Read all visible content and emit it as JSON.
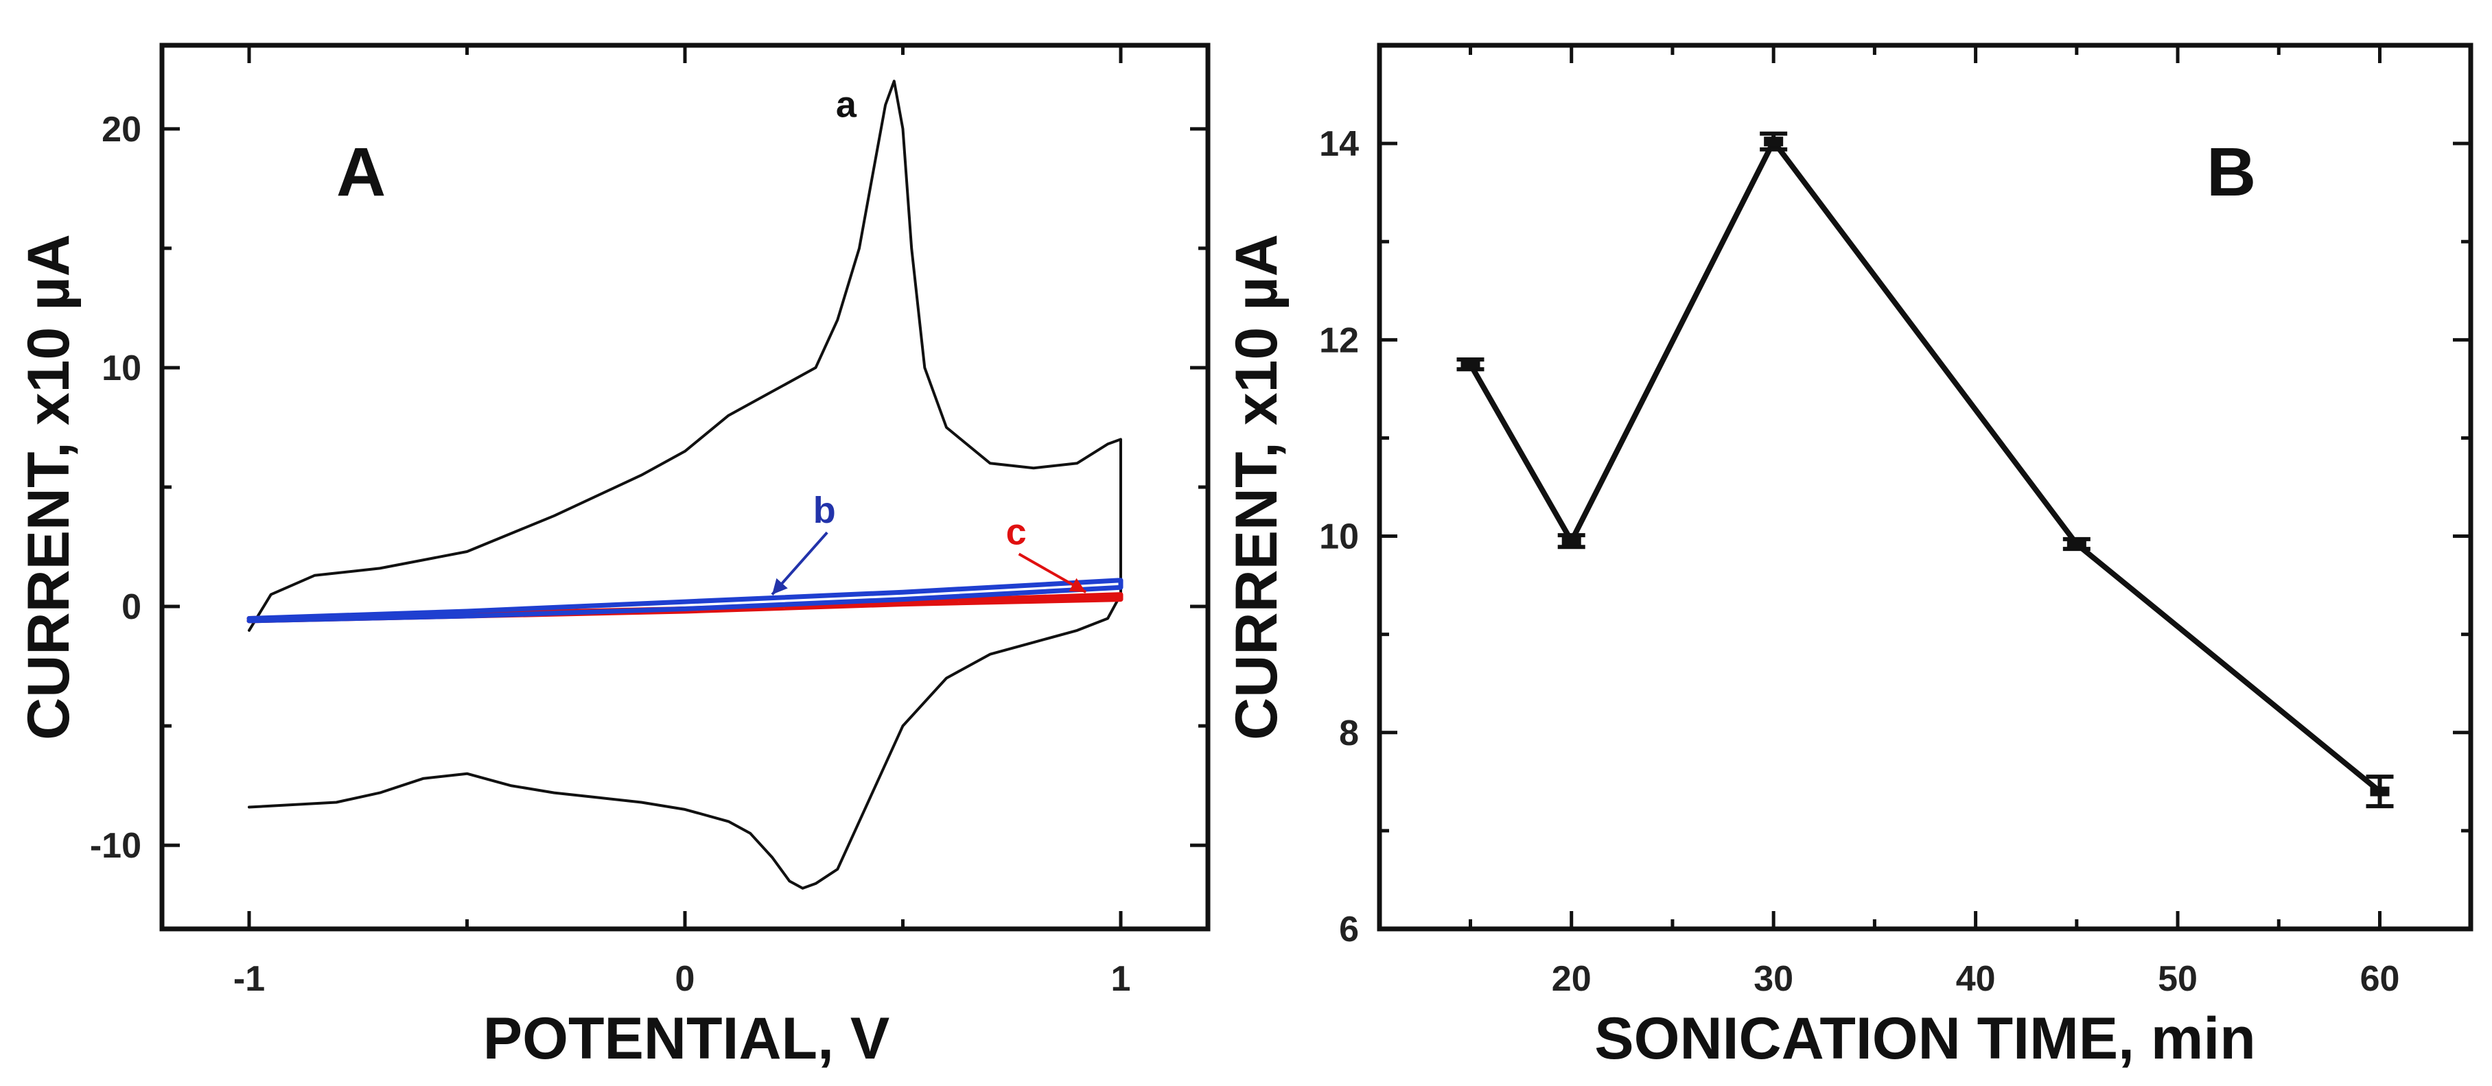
{
  "chart_data": [
    {
      "panel": "A",
      "type": "line",
      "xlabel": "POTENTIAL, V",
      "ylabel": "CURRENT, x10 µA",
      "xlim": [
        -1.2,
        1.2
      ],
      "ylim": [
        -13.5,
        23.5
      ],
      "xticks": [
        -1,
        0,
        1
      ],
      "xtick_labels": [
        "-1",
        "0",
        "1"
      ],
      "yticks": [
        -10,
        0,
        10,
        20
      ],
      "ytick_labels": [
        "-10",
        "0",
        "10",
        "20"
      ],
      "series": [
        {
          "name": "a",
          "color": "#111111",
          "x": [
            -1.0,
            -0.95,
            -0.85,
            -0.7,
            -0.5,
            -0.3,
            -0.1,
            0.0,
            0.1,
            0.2,
            0.3,
            0.35,
            0.4,
            0.43,
            0.46,
            0.48,
            0.5,
            0.52,
            0.55,
            0.6,
            0.7,
            0.8,
            0.9,
            0.97,
            1.0,
            1.0,
            0.97,
            0.9,
            0.8,
            0.7,
            0.6,
            0.5,
            0.45,
            0.4,
            0.35,
            0.3,
            0.27,
            0.24,
            0.2,
            0.15,
            0.1,
            0.0,
            -0.1,
            -0.2,
            -0.3,
            -0.4,
            -0.5,
            -0.6,
            -0.7,
            -0.8,
            -0.9,
            -1.0
          ],
          "y": [
            -1.0,
            0.5,
            1.3,
            1.6,
            2.3,
            3.8,
            5.5,
            6.5,
            8.0,
            9.0,
            10.0,
            12.0,
            15.0,
            18.0,
            21.0,
            22.0,
            20.0,
            15.0,
            10.0,
            7.5,
            6.0,
            5.8,
            6.0,
            6.8,
            7.0,
            0.5,
            -0.5,
            -1.0,
            -1.5,
            -2.0,
            -3.0,
            -5.0,
            -7.0,
            -9.0,
            -11.0,
            -11.6,
            -11.8,
            -11.5,
            -10.5,
            -9.5,
            -9.0,
            -8.5,
            -8.2,
            -8.0,
            -7.8,
            -7.5,
            -7.0,
            -7.2,
            -7.8,
            -8.2,
            -8.3,
            -8.4
          ]
        },
        {
          "name": "b",
          "color": "#1f3fd0",
          "x": [
            -1.0,
            -0.5,
            0.0,
            0.5,
            1.0,
            1.0,
            0.5,
            0.0,
            -0.5,
            -1.0
          ],
          "y": [
            -0.5,
            -0.2,
            0.2,
            0.6,
            1.1,
            0.8,
            0.3,
            -0.1,
            -0.4,
            -0.6
          ]
        },
        {
          "name": "c",
          "color": "#e01010",
          "x": [
            -1.0,
            -0.5,
            0.0,
            0.5,
            1.0,
            1.0,
            0.5,
            0.0,
            -0.5,
            -1.0
          ],
          "y": [
            -0.5,
            -0.3,
            -0.1,
            0.2,
            0.5,
            0.3,
            0.1,
            -0.2,
            -0.4,
            -0.6
          ]
        }
      ],
      "annotations": [
        {
          "text": "a",
          "x": 0.37,
          "y": 20.5,
          "color": "#111111"
        },
        {
          "text": "b",
          "x": 0.32,
          "y": 3.5,
          "color": "#2233aa",
          "arrow_to": [
            0.2,
            0.5
          ]
        },
        {
          "text": "c",
          "x": 0.76,
          "y": 2.6,
          "color": "#e01010",
          "arrow_to": [
            0.92,
            0.6
          ]
        }
      ]
    },
    {
      "panel": "B",
      "type": "line",
      "xlabel": "SONICATION TIME, min",
      "ylabel": "CURRENT, x10 µA",
      "xlim": [
        10.5,
        64.5
      ],
      "ylim": [
        6,
        15
      ],
      "xticks": [
        20,
        30,
        40,
        50,
        60
      ],
      "xtick_labels": [
        "20",
        "30",
        "40",
        "50",
        "60"
      ],
      "yticks": [
        6,
        8,
        10,
        12,
        14
      ],
      "ytick_labels": [
        "6",
        "8",
        "10",
        "12",
        "14"
      ],
      "series": [
        {
          "name": "current",
          "color": "#111111",
          "x": [
            15,
            20,
            30,
            45,
            60
          ],
          "y": [
            11.75,
            9.95,
            14.02,
            9.92,
            7.4
          ],
          "error": [
            0.05,
            0.06,
            0.08,
            0.05,
            0.15
          ]
        }
      ]
    }
  ]
}
